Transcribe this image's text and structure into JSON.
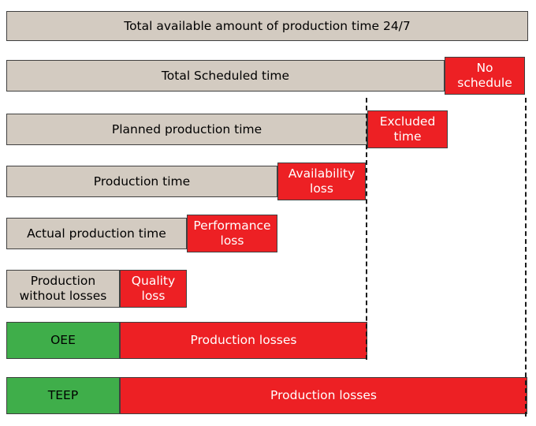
{
  "rows": [
    {
      "main": "Total available amount of production time 24/7"
    },
    {
      "main": "Total Scheduled time",
      "loss": "No schedule"
    },
    {
      "main": "Planned production time",
      "loss": "Excluded time"
    },
    {
      "main": "Production time",
      "loss": "Availability loss"
    },
    {
      "main": "Actual production time",
      "loss": "Performance loss"
    },
    {
      "main": "Production without losses",
      "loss": "Quality loss"
    },
    {
      "main": "OEE",
      "loss": "Production losses"
    },
    {
      "main": "TEEP",
      "loss": "Production losses"
    }
  ],
  "colors": {
    "bar_tan": "#d3cbc1",
    "loss_red": "#ed2024",
    "good_green": "#3fae4a",
    "border": "#404040"
  }
}
